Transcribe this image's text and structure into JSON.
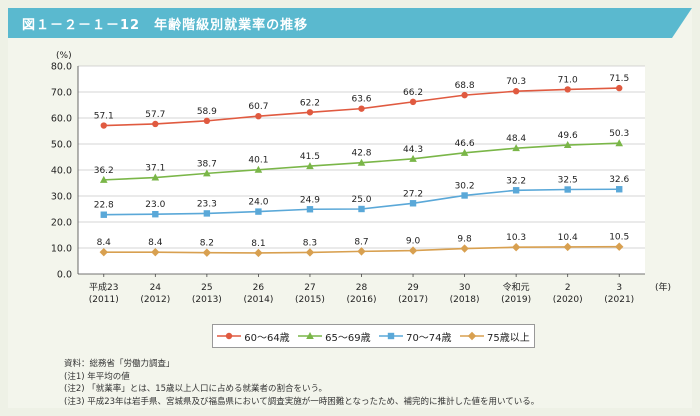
{
  "title": "図１－２－１－12　年齢階級別就業率の推移",
  "colors": {
    "header": "#5ab9cf",
    "s60_64": "#e05a40",
    "s65_69": "#7ab648",
    "s70_74": "#5aa8d8",
    "s75": "#d8a050"
  },
  "chart_data": {
    "type": "line",
    "yunit": "(%)",
    "xunit": "(年)",
    "ylim": [
      0,
      80
    ],
    "yticks": [
      "0.0",
      "10.0",
      "20.0",
      "30.0",
      "40.0",
      "50.0",
      "60.0",
      "70.0",
      "80.0"
    ],
    "categories": [
      {
        "era": "平成23",
        "year": "(2011)"
      },
      {
        "era": "24",
        "year": "(2012)"
      },
      {
        "era": "25",
        "year": "(2013)"
      },
      {
        "era": "26",
        "year": "(2014)"
      },
      {
        "era": "27",
        "year": "(2015)"
      },
      {
        "era": "28",
        "year": "(2016)"
      },
      {
        "era": "29",
        "year": "(2017)"
      },
      {
        "era": "30",
        "year": "(2018)"
      },
      {
        "era": "令和元",
        "year": "(2019)"
      },
      {
        "era": "2",
        "year": "(2020)"
      },
      {
        "era": "3",
        "year": "(2021)"
      }
    ],
    "series": [
      {
        "name": "60～64歳",
        "marker": "circle",
        "colorKey": "s60_64",
        "values": [
          57.1,
          57.7,
          58.9,
          60.7,
          62.2,
          63.6,
          66.2,
          68.8,
          70.3,
          71.0,
          71.5
        ]
      },
      {
        "name": "65～69歳",
        "marker": "triangle",
        "colorKey": "s65_69",
        "values": [
          36.2,
          37.1,
          38.7,
          40.1,
          41.5,
          42.8,
          44.3,
          46.6,
          48.4,
          49.6,
          50.3
        ]
      },
      {
        "name": "70～74歳",
        "marker": "square",
        "colorKey": "s70_74",
        "values": [
          22.8,
          23.0,
          23.3,
          24.0,
          24.9,
          25.0,
          27.2,
          30.2,
          32.2,
          32.5,
          32.6
        ]
      },
      {
        "name": "75歳以上",
        "marker": "diamond",
        "colorKey": "s75",
        "values": [
          8.4,
          8.4,
          8.2,
          8.1,
          8.3,
          8.7,
          9.0,
          9.8,
          10.3,
          10.4,
          10.5
        ]
      }
    ]
  },
  "notes": [
    "資料：総務省「労働力調査」",
    "(注1)  年平均の値",
    "(注2)  「就業率」とは、15歳以上人口に占める就業者の割合をいう。",
    "(注3)  平成23年は岩手県、宮城県及び福島県において調査実施が一時困難となったため、補完的に推計した値を用いている。"
  ]
}
